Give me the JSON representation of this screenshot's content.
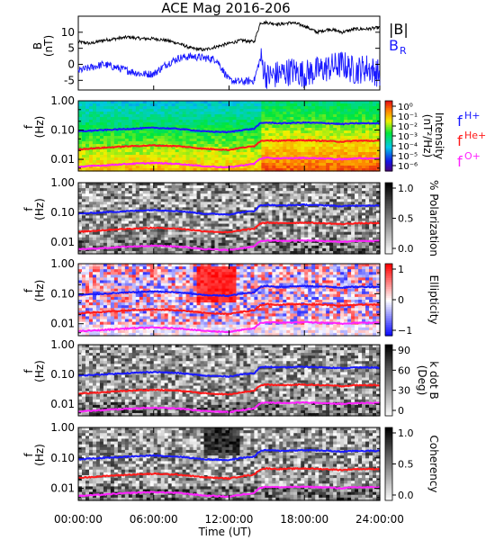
{
  "title": "ACE Mag 2016-206",
  "colors": {
    "field_magnitude": "#000000",
    "field_radial": "#1a1aff",
    "h_plus": "#1a1aff",
    "he_plus": "#ff1a1a",
    "o_plus": "#ff22ff"
  },
  "legend": {
    "b_magnitude": "|B|",
    "b_radial": "B",
    "b_radial_sub": "R",
    "f_label": "f",
    "h_plus_sub": "H+",
    "he_plus_sub": "He+",
    "o_plus_sub": "O+"
  },
  "x_axis": {
    "label": "Time (UT)",
    "range_hours": [
      0,
      24
    ],
    "ticks": [
      "00:00:00",
      "06:00:00",
      "12:00:00",
      "18:00:00",
      "24:00:00"
    ]
  },
  "chart_data": [
    {
      "type": "line",
      "panel": "magnetic-field",
      "ylabel": "B",
      "yunit": "(nT)",
      "ylim": [
        -8,
        15
      ],
      "yticks": [
        -5,
        0,
        5,
        10
      ],
      "x": [
        0,
        1,
        2,
        3,
        4,
        5,
        6,
        7,
        8,
        9,
        10,
        11,
        12,
        13,
        14,
        14.5,
        15,
        16,
        17,
        18,
        19,
        20,
        21,
        22,
        23,
        24
      ],
      "series": [
        {
          "name": "|B|",
          "values": [
            7,
            6.5,
            7.5,
            8,
            8.5,
            8,
            8,
            7.5,
            6.5,
            5,
            4.5,
            5.5,
            6.5,
            7.5,
            7,
            13,
            13,
            12.5,
            13,
            12,
            10,
            11,
            10,
            11,
            11,
            11.5
          ]
        },
        {
          "name": "BR",
          "values": [
            -2,
            -1,
            0,
            -1,
            -2,
            -3,
            -3,
            0,
            2,
            2.5,
            2,
            1.5,
            -5,
            -5.5,
            -5,
            2,
            -4,
            -3,
            -2,
            -3,
            -2,
            -1,
            0,
            -2,
            -1,
            -3
          ]
        }
      ]
    },
    {
      "type": "heatmap",
      "panel": "power-spectrum",
      "ylabel": "f",
      "yunit": "(Hz)",
      "yscale": "log",
      "ylim": [
        0.004,
        1.0
      ],
      "yticks": [
        "1.00",
        "0.10",
        "0.01"
      ],
      "colorbar": {
        "label": "Intensity",
        "unit": "(nT²/Hz)",
        "ticks": [
          "10⁰",
          "10⁻¹",
          "10⁻²",
          "10⁻³",
          "10⁻⁴",
          "10⁻⁵",
          "10⁻⁶"
        ]
      }
    },
    {
      "type": "heatmap",
      "panel": "polarization",
      "ylabel": "f",
      "yunit": "(Hz)",
      "yscale": "log",
      "ylim": [
        0.004,
        1.0
      ],
      "yticks": [
        "1.00",
        "0.10",
        "0.01"
      ],
      "colorbar": {
        "label": "% Polarization",
        "unit": "",
        "ticks": [
          "1.0",
          "0.5",
          "0.0"
        ]
      }
    },
    {
      "type": "heatmap",
      "panel": "ellipticity",
      "ylabel": "f",
      "yunit": "(Hz)",
      "yscale": "log",
      "ylim": [
        0.004,
        1.0
      ],
      "yticks": [
        "1.00",
        "0.10",
        "0.01"
      ],
      "colorbar": {
        "label": "Ellipticity",
        "unit": "",
        "ticks": [
          "1",
          "0",
          "−1"
        ]
      }
    },
    {
      "type": "heatmap",
      "panel": "k-dot-b",
      "ylabel": "f",
      "yunit": "(Hz)",
      "yscale": "log",
      "ylim": [
        0.004,
        1.0
      ],
      "yticks": [
        "1.00",
        "0.10",
        "0.01"
      ],
      "colorbar": {
        "label": "k dot B",
        "unit": "(Deg)",
        "ticks": [
          "90",
          "60",
          "30",
          "0"
        ]
      }
    },
    {
      "type": "heatmap",
      "panel": "coherency",
      "ylabel": "f",
      "yunit": "(Hz)",
      "yscale": "log",
      "ylim": [
        0.004,
        1.0
      ],
      "yticks": [
        "1.00",
        "0.10",
        "0.01"
      ],
      "colorbar": {
        "label": "Coherency",
        "unit": "",
        "ticks": [
          "1.0",
          "0.5",
          "0.0"
        ]
      }
    }
  ],
  "gyrofrequency_lines": {
    "x": [
      0,
      2,
      4,
      6,
      8,
      10,
      12,
      13,
      14,
      14.5,
      15,
      16,
      18,
      20,
      21,
      22,
      23,
      24
    ],
    "h_plus": [
      0.09,
      0.1,
      0.11,
      0.12,
      0.11,
      0.09,
      0.085,
      0.1,
      0.11,
      0.17,
      0.18,
      0.17,
      0.18,
      0.17,
      0.16,
      0.17,
      0.17,
      0.17
    ],
    "he_plus": [
      0.022,
      0.025,
      0.028,
      0.03,
      0.028,
      0.023,
      0.021,
      0.025,
      0.028,
      0.042,
      0.045,
      0.043,
      0.045,
      0.042,
      0.04,
      0.043,
      0.043,
      0.043
    ],
    "o_plus": [
      0.0056,
      0.0062,
      0.007,
      0.0075,
      0.007,
      0.0058,
      0.0053,
      0.0062,
      0.007,
      0.0106,
      0.0112,
      0.0108,
      0.0112,
      0.0106,
      0.01,
      0.0108,
      0.0108,
      0.0108
    ]
  }
}
